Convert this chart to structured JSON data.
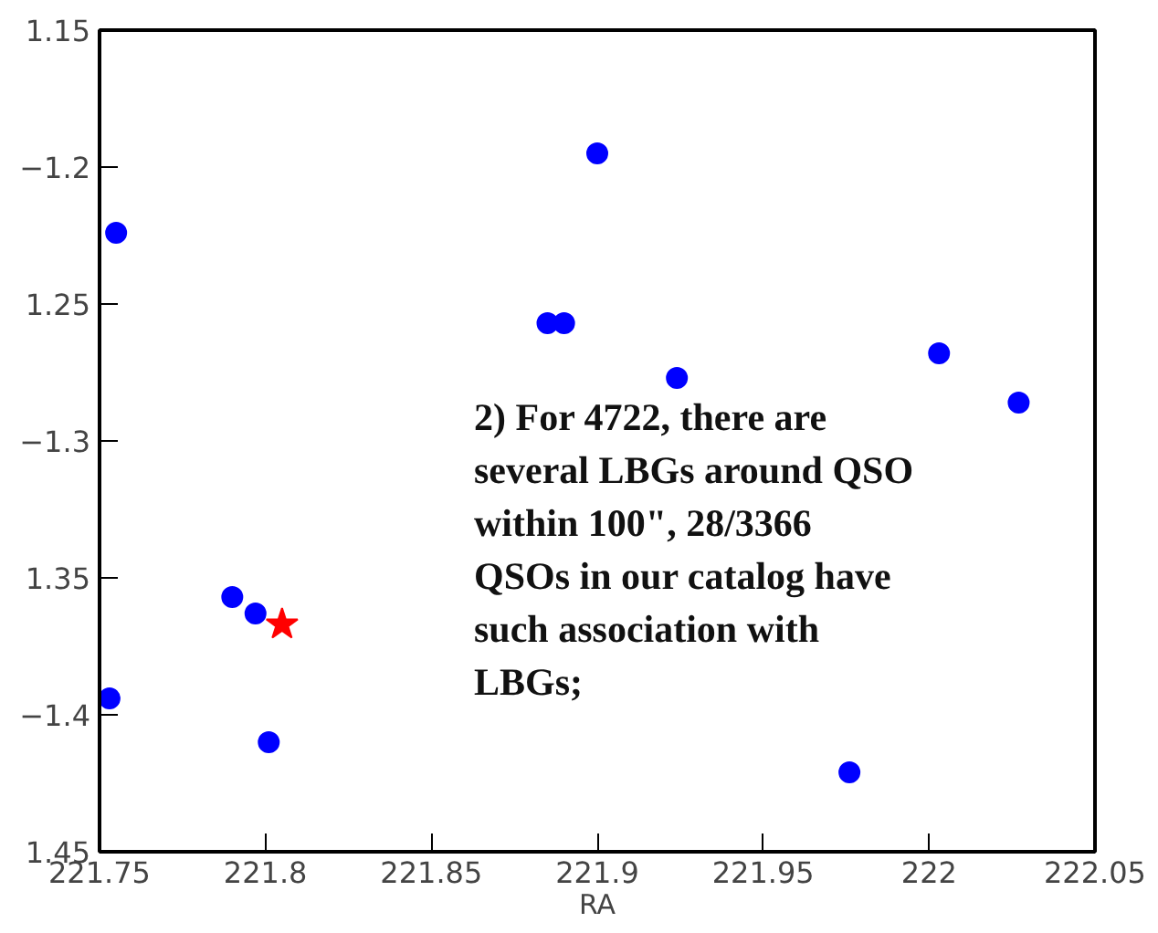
{
  "chart_data": {
    "type": "scatter",
    "xlabel": "RA",
    "xlim": [
      221.75,
      222.05
    ],
    "xticks": [
      221.75,
      221.8,
      221.85,
      221.9,
      221.95,
      222,
      222.05
    ],
    "ylim": [
      -1.45,
      -1.15
    ],
    "yticks": [
      {
        "value": -1.45,
        "label": "1.45"
      },
      -1.4,
      {
        "value": -1.35,
        "label": "1.35"
      },
      -1.3,
      {
        "value": -1.25,
        "label": "1.25"
      },
      -1.2,
      {
        "value": -1.15,
        "label": "1.15"
      }
    ],
    "grid": false,
    "series": [
      {
        "color": "#0000ff",
        "marker": "circle",
        "x": [
          221.755,
          221.9,
          221.885,
          221.89,
          221.924,
          222.003,
          222.027,
          221.79,
          221.797,
          221.753,
          221.801,
          221.976
        ],
        "values": [
          -1.224,
          -1.195,
          -1.257,
          -1.257,
          -1.277,
          -1.268,
          -1.286,
          -1.357,
          -1.363,
          -1.394,
          -1.41,
          -1.421
        ]
      },
      {
        "color": "#ff0000",
        "marker": "star",
        "x": [
          221.805
        ],
        "values": [
          -1.367
        ]
      }
    ],
    "annotations": [
      "2) For 4722, there are several LBGs around QSO within 100\", 28/3366 QSOs in our catalog have such association with LBGs;"
    ]
  }
}
